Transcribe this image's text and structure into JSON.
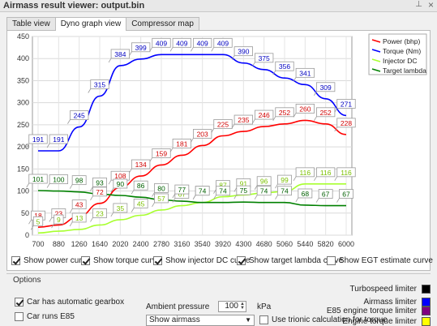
{
  "window": {
    "title": "Airmass result viewer: output.bin",
    "pin_icon": "pin-icon",
    "close_icon": "close-icon"
  },
  "tabs": [
    {
      "label": "Table view",
      "active": false
    },
    {
      "label": "Dyno graph view",
      "active": true
    },
    {
      "label": "Compressor map",
      "active": false
    }
  ],
  "chart_data": {
    "type": "line",
    "title": "",
    "xlabel": "",
    "ylabel": "",
    "ylim": [
      0,
      450
    ],
    "yticks": [
      0,
      50,
      100,
      150,
      200,
      250,
      300,
      350,
      400,
      450
    ],
    "xlim": [
      700,
      6000
    ],
    "xticks": [
      700,
      880,
      1260,
      1640,
      2020,
      2400,
      2780,
      3160,
      3540,
      3920,
      4300,
      4680,
      5060,
      5440,
      5820,
      6000
    ],
    "grid": true,
    "legend_position": "top-right",
    "series": [
      {
        "name": "Power (bhp)",
        "color": "#ff0000",
        "labelColor": "#d00000",
        "x": [
          700,
          880,
          1260,
          1640,
          2020,
          2400,
          2780,
          3160,
          3540,
          3920,
          4300,
          4680,
          5060,
          5440,
          5820,
          6000
        ],
        "values": [
          18,
          23,
          43,
          72,
          108,
          134,
          159,
          181,
          203,
          225,
          235,
          246,
          252,
          260,
          252,
          228
        ]
      },
      {
        "name": "Torque (Nm)",
        "color": "#0000ff",
        "labelColor": "#0000c0",
        "x": [
          700,
          880,
          1260,
          1640,
          2020,
          2400,
          2780,
          3160,
          3540,
          3920,
          4300,
          4680,
          5060,
          5440,
          5820,
          6000
        ],
        "values": [
          191,
          191,
          245,
          315,
          384,
          399,
          409,
          409,
          409,
          409,
          390,
          375,
          356,
          341,
          309,
          271
        ]
      },
      {
        "name": "Injector DC",
        "color": "#a8ff30",
        "labelColor": "#7ac000",
        "x": [
          700,
          880,
          1260,
          1640,
          2020,
          2400,
          2780,
          3160,
          3540,
          3920,
          4300,
          4680,
          5060,
          5440,
          5820,
          6000
        ],
        "values": [
          5,
          9,
          13,
          23,
          35,
          45,
          57,
          67,
          74,
          87,
          91,
          96,
          99,
          116,
          116,
          116
        ]
      },
      {
        "name": "Target lambda",
        "color": "#008000",
        "labelColor": "#006000",
        "x": [
          700,
          880,
          1260,
          1640,
          2020,
          2400,
          2780,
          3160,
          3540,
          3920,
          4300,
          4680,
          5060,
          5440,
          5820,
          6000
        ],
        "values": [
          101,
          100,
          98,
          93,
          90,
          86,
          80,
          77,
          74,
          74,
          75,
          74,
          74,
          68,
          67,
          67
        ]
      }
    ]
  },
  "checkboxes": [
    {
      "label": "Show power curve",
      "checked": true
    },
    {
      "label": "Show torque curve",
      "checked": true
    },
    {
      "label": "Show injector DC curve",
      "checked": true
    },
    {
      "label": "Show target lambda curve",
      "checked": true
    },
    {
      "label": "Show EGT estimate curve",
      "checked": false
    }
  ],
  "options": {
    "label": "Options",
    "auto_gearbox": {
      "label": "Car has automatic gearbox",
      "checked": true
    },
    "e85": {
      "label": "Car runs E85",
      "checked": false
    },
    "ambient_label": "Ambient pressure",
    "ambient_value": "100",
    "ambient_unit": "kPa",
    "display_select": "Show airmass",
    "trionic": {
      "label": "Use trionic calculation for torque",
      "checked": false
    }
  },
  "limiters": [
    {
      "label": "Turbospeed limiter",
      "color": "#000000"
    },
    {
      "label": "Airmass limiter",
      "color": "#0000ff"
    },
    {
      "label": "E85 engine torque limiter",
      "color": "#800080"
    },
    {
      "label": "Engine torque limiter",
      "color": "#ffff00"
    }
  ]
}
